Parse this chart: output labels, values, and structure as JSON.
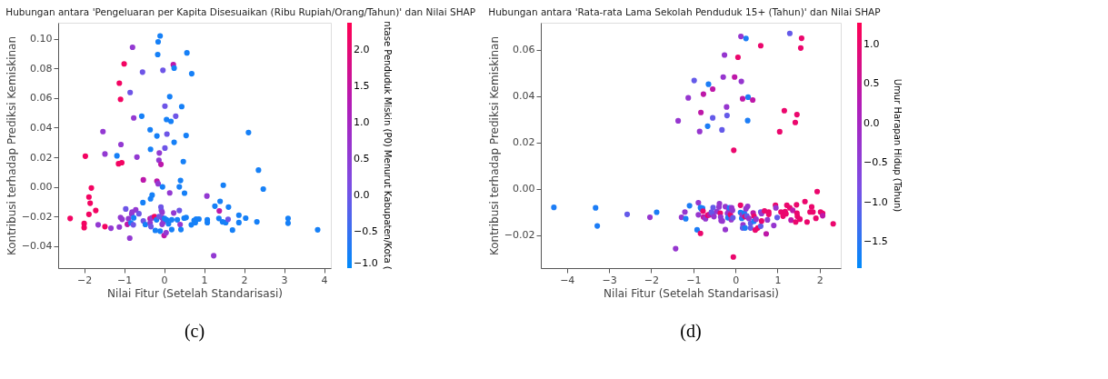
{
  "chart_data": [
    {
      "type": "scatter",
      "title": "Hubungan antara 'Pengeluaran per Kapita Disesuaikan (Ribu Rupiah/Orang/Tahun)' dan Nilai SHAP",
      "xlabel": "Nilai Fitur (Setelah Standarisasi)",
      "ylabel": "Kontribusi terhadap Prediksi Kemiskinan",
      "clabel": "ntase Penduduk Miskin (P0) Menurut Kabupaten/Kota (",
      "marker": "circle",
      "grid": false,
      "annotations": [
        "(c)"
      ],
      "xlim": [
        -2.65,
        4.17
      ],
      "ylim": [
        -0.055,
        0.111
      ],
      "xticks": [
        -2,
        -1,
        0,
        1,
        2,
        3,
        4
      ],
      "yticks": [
        {
          "value": -0.04,
          "label": "−0.04"
        },
        {
          "value": -0.02,
          "label": "−0.02"
        },
        {
          "value": 0,
          "label": "0.00"
        },
        {
          "value": 0.02,
          "label": "0.02"
        },
        {
          "value": 0.04,
          "label": "0.04"
        },
        {
          "value": 0.06,
          "label": "0.06"
        },
        {
          "value": 0.08,
          "label": "0.08"
        },
        {
          "value": 0.1,
          "label": "0.10"
        }
      ],
      "clim": [
        -1.0,
        2.38
      ],
      "cticks": [
        {
          "value": -1,
          "label": "−1.0"
        },
        {
          "value": -0.5,
          "label": "−0.5"
        },
        {
          "value": 0,
          "label": "0.0"
        },
        {
          "value": 0.5,
          "label": "0.5"
        },
        {
          "value": 1,
          "label": "1.0"
        },
        {
          "value": 1.5,
          "label": "1.5"
        },
        {
          "value": 2,
          "label": "2.0"
        }
      ],
      "x": [
        -0.1,
        -0.15,
        -0.79,
        -0.16,
        0.57,
        -1.0,
        0.23,
        0.25,
        -0.03,
        -0.54,
        0.69,
        -1.12,
        -0.85,
        0.14,
        -1.09,
        0.02,
        0.44,
        -0.76,
        -0.56,
        0.29,
        0.06,
        0.17,
        -1.53,
        -0.35,
        2.11,
        -0.18,
        0.07,
        0.55,
        -1.08,
        0.25,
        -0.34,
        0.02,
        -0.12,
        -1.97,
        -1.48,
        -1.18,
        -0.68,
        -0.13,
        -0.08,
        -1.14,
        -1.06,
        0.48,
        -0.52,
        -0.18,
        -0.15,
        -0.04,
        0.38,
        0.41,
        0.14,
        0.51,
        -0.3,
        -0.34,
        -0.53,
        -1.82,
        -1.88,
        -1.85,
        -1.88,
        -1.71,
        -2.35,
        -2.0,
        -2.0,
        -1.65,
        -1.48,
        -1.33,
        -1.12,
        -0.96,
        -1.09,
        -1.05,
        -0.92,
        -0.89,
        -0.81,
        -0.8,
        -0.83,
        -0.77,
        -0.76,
        -0.71,
        -0.63,
        -0.86,
        -0.52,
        -0.47,
        -0.35,
        -0.35,
        -0.33,
        -0.3,
        -0.24,
        -0.19,
        -0.22,
        -0.1,
        -0.08,
        -0.07,
        -0.05,
        -0.05,
        -0.13,
        -0.05,
        -0.02,
        0.0,
        0.05,
        0.01,
        0.06,
        0.11,
        0.19,
        0.19,
        0.24,
        0.33,
        0.38,
        0.4,
        0.42,
        0.5,
        0.55,
        0.68,
        0.75,
        0.78,
        0.8,
        0.87,
        1.07,
        1.08,
        1.08,
        1.24,
        1.27,
        1.38,
        1.4,
        1.37,
        1.46,
        1.48,
        1.54,
        1.6,
        1.61,
        1.71,
        1.87,
        1.87,
        2.04,
        2.32,
        2.36,
        2.48,
        3.1,
        3.1,
        3.84
      ],
      "values": [
        0.1021,
        0.0981,
        0.0944,
        0.0895,
        0.0906,
        0.0832,
        0.0826,
        0.0803,
        0.0788,
        0.0776,
        0.0765,
        0.0701,
        0.0638,
        0.061,
        0.0592,
        0.0546,
        0.0543,
        0.0466,
        0.0478,
        0.0478,
        0.0455,
        0.0443,
        0.0374,
        0.0386,
        0.0367,
        0.0344,
        0.0357,
        0.0347,
        0.0286,
        0.0301,
        0.0254,
        0.0262,
        0.0229,
        0.0207,
        0.0222,
        0.021,
        0.0201,
        0.018,
        0.0152,
        0.0156,
        0.0163,
        0.0171,
        0.0047,
        0.0038,
        0.0021,
        0.0,
        0.0,
        0.0043,
        -0.0041,
        -0.0043,
        -0.0056,
        -0.0081,
        -0.0107,
        -0.0008,
        -0.0069,
        -0.0111,
        -0.0186,
        -0.016,
        -0.0214,
        -0.0248,
        -0.0276,
        -0.0257,
        -0.0269,
        -0.028,
        -0.0272,
        -0.015,
        -0.0207,
        -0.022,
        -0.0254,
        -0.0216,
        -0.0184,
        -0.0171,
        -0.0244,
        -0.0257,
        -0.021,
        -0.0156,
        -0.0182,
        -0.0347,
        -0.0231,
        -0.0255,
        -0.0216,
        -0.0244,
        -0.0269,
        -0.021,
        -0.0201,
        -0.0223,
        -0.0295,
        -0.03,
        -0.0137,
        -0.0158,
        -0.0173,
        -0.021,
        -0.0201,
        -0.0254,
        -0.0238,
        -0.0329,
        -0.031,
        -0.0214,
        -0.0223,
        -0.025,
        -0.0223,
        -0.0289,
        -0.0177,
        -0.0223,
        -0.016,
        -0.0255,
        -0.0289,
        -0.0212,
        -0.0208,
        -0.0257,
        -0.0227,
        -0.0242,
        -0.0218,
        -0.0218,
        -0.0062,
        -0.0223,
        -0.0242,
        -0.0466,
        -0.0131,
        -0.0163,
        -0.0098,
        -0.0214,
        -0.0237,
        0.0011,
        -0.0242,
        -0.022,
        -0.0137,
        -0.0293,
        -0.0192,
        -0.0242,
        -0.0212,
        -0.0237,
        0.0113,
        -0.0015,
        -0.0214,
        -0.0246,
        -0.0291
      ],
      "cvalues": [
        -0.8,
        -0.8,
        0.6,
        -0.8,
        -0.8,
        2.2,
        1.4,
        -0.8,
        0.0,
        0.0,
        -0.8,
        2.2,
        0.0,
        -0.8,
        2.2,
        0.0,
        -0.8,
        0.6,
        -0.8,
        0.0,
        -0.8,
        -0.8,
        0.6,
        -0.8,
        -0.8,
        -0.8,
        0.0,
        -0.8,
        0.6,
        -0.8,
        -0.8,
        0.0,
        0.6,
        2.2,
        0.6,
        -0.8,
        0.6,
        0.6,
        1.4,
        2.2,
        2.2,
        -0.8,
        1.4,
        1.4,
        0.6,
        -0.8,
        -0.8,
        -0.8,
        0.6,
        -0.8,
        -0.8,
        -0.8,
        -0.8,
        2.2,
        2.2,
        2.2,
        2.2,
        2.2,
        2.2,
        2.2,
        2.2,
        0.6,
        2.2,
        0.6,
        0.6,
        0.0,
        0.6,
        0.6,
        1.4,
        0.6,
        0.6,
        0.6,
        -0.8,
        0.0,
        -0.8,
        0.6,
        0.0,
        0.6,
        0.0,
        -0.8,
        1.4,
        0.6,
        0.0,
        0.6,
        2.2,
        -0.8,
        -0.8,
        -0.8,
        0.0,
        0.0,
        0.6,
        0.6,
        0.0,
        0.6,
        0.6,
        1.4,
        0.6,
        -0.8,
        -0.8,
        -0.8,
        -0.8,
        -0.8,
        0.6,
        -0.8,
        0.0,
        0.6,
        -0.8,
        -0.8,
        -0.8,
        -0.8,
        -0.8,
        -0.8,
        -0.8,
        -0.8,
        0.6,
        -0.8,
        -0.8,
        0.6,
        -0.8,
        1.4,
        -0.8,
        -0.8,
        -0.8,
        -0.8,
        -0.8,
        0.0,
        -0.8,
        -0.8,
        -0.8,
        -0.8,
        -0.8,
        -0.8,
        -0.8,
        -0.8,
        -0.8,
        -0.8,
        -0.8
      ]
    },
    {
      "type": "scatter",
      "title": "Hubungan antara 'Rata-rata Lama Sekolah Penduduk 15+ (Tahun)' dan Nilai SHAP",
      "xlabel": "Nilai Fitur (Setelah Standarisasi)",
      "ylabel": "Kontribusi terhadap Prediksi Kemiskinan",
      "clabel": "Umur Harapan Hidup (Tahun)",
      "marker": "circle",
      "grid": false,
      "annotations": [
        "(d)"
      ],
      "xlim": [
        -4.62,
        2.5
      ],
      "ylim": [
        -0.0342,
        0.0716
      ],
      "xticks": [
        -4,
        -3,
        -2,
        -1,
        0,
        1,
        2
      ],
      "yticks": [
        {
          "value": -0.02,
          "label": "−0.02"
        },
        {
          "value": 0,
          "label": "0.00"
        },
        {
          "value": 0.02,
          "label": "0.02"
        },
        {
          "value": 0.04,
          "label": "0.04"
        },
        {
          "value": 0.06,
          "label": "0.06"
        }
      ],
      "clim": [
        -1.83,
        1.27
      ],
      "cticks": [
        {
          "value": -1.5,
          "label": "−1.5"
        },
        {
          "value": -1,
          "label": "−1.0"
        },
        {
          "value": -0.5,
          "label": "−0.5"
        },
        {
          "value": 0,
          "label": "0.0"
        },
        {
          "value": 0.5,
          "label": "0.5"
        },
        {
          "value": 1,
          "label": "1.0"
        }
      ],
      "x": [
        0.13,
        0.25,
        1.29,
        1.57,
        1.55,
        0.6,
        -0.26,
        0.06,
        -0.98,
        -0.64,
        -0.29,
        -0.02,
        0.14,
        -0.54,
        -0.76,
        -1.12,
        0.17,
        0.3,
        0.41,
        -0.21,
        1.16,
        1.46,
        -0.82,
        -0.2,
        -1.36,
        -0.54,
        0.29,
        1.42,
        -0.66,
        -0.85,
        -0.32,
        1.05,
        -0.04,
        -4.31,
        -3.32,
        -3.28,
        -2.57,
        -2.03,
        -1.87,
        -1.42,
        -1.28,
        -1.2,
        -1.18,
        -1.09,
        -0.91,
        -0.88,
        -0.88,
        -0.83,
        -0.83,
        -0.81,
        -0.78,
        -0.77,
        -0.76,
        -0.71,
        -0.66,
        -0.64,
        -0.61,
        -0.57,
        -0.54,
        -0.51,
        -0.53,
        -0.44,
        -0.39,
        -0.38,
        -0.36,
        -0.35,
        -0.34,
        -0.31,
        -0.24,
        -0.24,
        -0.19,
        -0.18,
        -0.16,
        -0.14,
        -0.12,
        -0.1,
        -0.09,
        -0.07,
        -0.06,
        -0.05,
        0.12,
        0.12,
        0.15,
        0.16,
        0.18,
        0.17,
        0.21,
        0.23,
        0.23,
        0.25,
        0.27,
        0.29,
        0.32,
        0.36,
        0.36,
        0.42,
        0.44,
        0.44,
        0.47,
        0.49,
        0.53,
        0.6,
        0.6,
        0.62,
        0.62,
        0.69,
        0.73,
        0.76,
        0.79,
        0.79,
        0.91,
        0.95,
        0.96,
        0.99,
        1.08,
        1.13,
        1.18,
        1.2,
        1.22,
        1.29,
        1.32,
        1.36,
        1.43,
        1.45,
        1.46,
        1.47,
        1.53,
        1.65,
        1.7,
        1.77,
        1.81,
        1.84,
        1.91,
        1.94,
        2.02,
        2.07,
        2.07,
        2.32
      ],
      "values": [
        0.0657,
        0.0648,
        0.067,
        0.0649,
        0.0607,
        0.0617,
        0.0577,
        0.0567,
        0.0467,
        0.0451,
        0.0482,
        0.0482,
        0.0463,
        0.043,
        0.0408,
        0.0392,
        0.0388,
        0.0395,
        0.0383,
        0.0353,
        0.0337,
        0.032,
        0.0329,
        0.0316,
        0.0293,
        0.0306,
        0.0294,
        0.0286,
        0.027,
        0.0247,
        0.0254,
        0.0246,
        0.0166,
        -0.008,
        -0.0082,
        -0.016,
        -0.011,
        -0.0123,
        -0.0101,
        -0.0258,
        -0.0123,
        -0.01,
        -0.0129,
        -0.0073,
        -0.0177,
        -0.006,
        -0.0112,
        -0.0192,
        -0.0081,
        -0.0087,
        -0.0084,
        -0.0096,
        -0.0122,
        -0.0129,
        -0.0114,
        -0.0112,
        -0.0112,
        -0.01,
        -0.0107,
        -0.012,
        -0.0081,
        -0.0098,
        -0.0078,
        -0.0064,
        -0.0105,
        -0.0122,
        -0.0137,
        -0.0139,
        -0.0077,
        -0.0176,
        -0.0106,
        -0.0125,
        -0.009,
        -0.0082,
        -0.0112,
        -0.0133,
        -0.0082,
        -0.0093,
        -0.0125,
        -0.0294,
        -0.0071,
        -0.0102,
        -0.0127,
        -0.0112,
        -0.0155,
        -0.0169,
        -0.0104,
        -0.0169,
        -0.012,
        -0.0086,
        -0.0117,
        -0.0076,
        -0.0128,
        -0.0149,
        -0.0169,
        -0.0104,
        -0.0118,
        -0.014,
        -0.0178,
        -0.0131,
        -0.0169,
        -0.01,
        -0.0161,
        -0.0107,
        -0.0139,
        -0.0095,
        -0.0194,
        -0.0134,
        -0.01,
        -0.011,
        -0.0158,
        -0.0071,
        -0.0082,
        -0.0124,
        -0.01,
        -0.0118,
        -0.0098,
        -0.0108,
        -0.0071,
        -0.0082,
        -0.0135,
        -0.0093,
        -0.0143,
        -0.0069,
        -0.0105,
        -0.0119,
        -0.0131,
        -0.0055,
        -0.0143,
        -0.01,
        -0.0078,
        -0.01,
        -0.0127,
        -0.0012,
        -0.01,
        -0.0106,
        -0.0116,
        -0.0151
      ],
      "cvalues": [
        -0.3,
        -1.6,
        -1.0,
        1.0,
        1.0,
        1.0,
        -0.3,
        1.0,
        -1.0,
        -1.6,
        -0.3,
        0.4,
        -0.3,
        0.4,
        0.4,
        -0.3,
        0.4,
        -1.6,
        0.4,
        -0.3,
        1.0,
        1.0,
        0.4,
        -1.0,
        -0.3,
        -1.0,
        -1.6,
        1.0,
        -1.6,
        -0.3,
        -1.0,
        1.0,
        1.0,
        -1.6,
        -1.6,
        -1.6,
        -1.0,
        -0.3,
        -1.6,
        -0.3,
        -0.3,
        -0.3,
        -1.6,
        -1.6,
        -1.6,
        -0.3,
        -0.3,
        1.0,
        -1.6,
        -1.6,
        -1.6,
        1.0,
        0.4,
        -0.3,
        1.0,
        1.0,
        0.4,
        -1.0,
        -1.0,
        -0.3,
        -1.0,
        -0.3,
        -0.3,
        -0.3,
        1.0,
        -0.3,
        -0.3,
        -0.3,
        -0.3,
        -0.3,
        -0.3,
        -1.6,
        -0.3,
        -1.6,
        1.0,
        -0.3,
        -0.3,
        -0.3,
        -1.0,
        1.0,
        1.0,
        -1.6,
        -1.6,
        -0.3,
        -0.3,
        -1.0,
        -1.6,
        -1.6,
        1.0,
        -0.3,
        -1.0,
        -0.3,
        -0.3,
        -1.0,
        -1.0,
        0.4,
        1.0,
        -1.6,
        1.0,
        -0.3,
        1.0,
        -1.0,
        -1.0,
        -0.3,
        1.0,
        1.0,
        0.4,
        -0.3,
        1.0,
        1.0,
        -0.3,
        1.0,
        -0.3,
        -1.0,
        1.0,
        1.0,
        1.0,
        1.0,
        1.0,
        1.0,
        0.4,
        0.4,
        1.0,
        1.0,
        1.0,
        1.0,
        1.0,
        1.0,
        1.0,
        1.0,
        1.0,
        1.0,
        1.0,
        1.0,
        1.0,
        1.0,
        0.4,
        1.0
      ]
    }
  ]
}
